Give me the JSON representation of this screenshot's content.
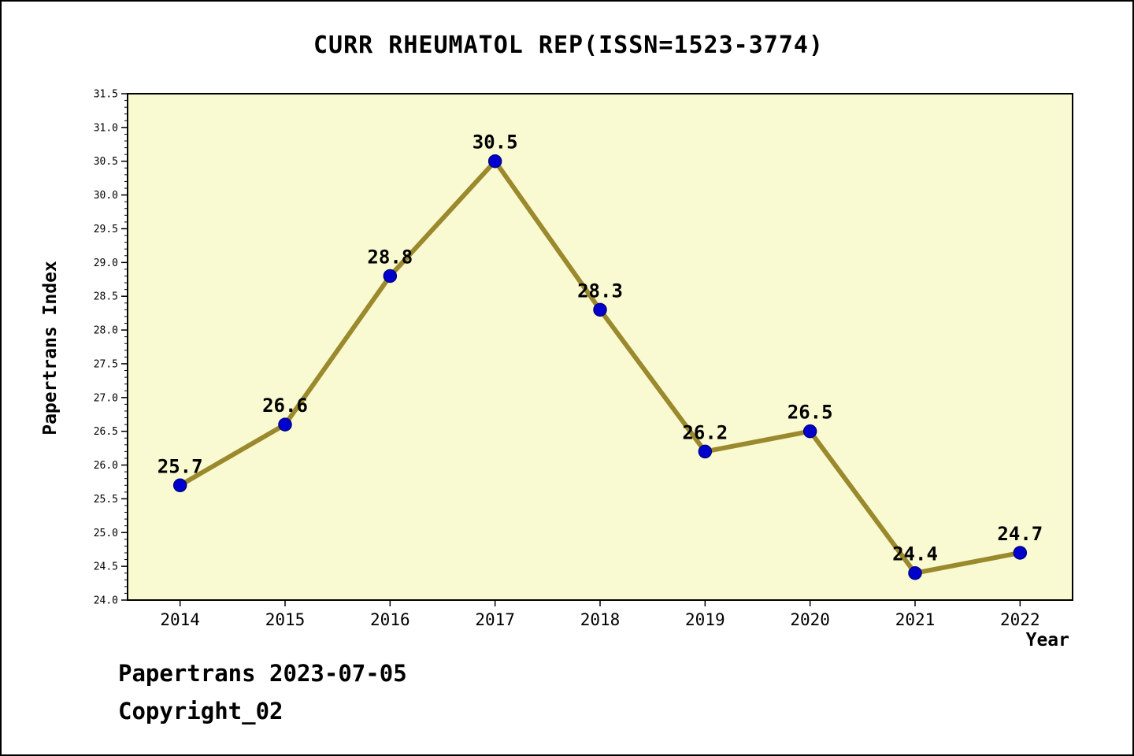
{
  "title": "CURR RHEUMATOL REP(ISSN=1523-3774)",
  "footer": {
    "line1": "Papertrans 2023-07-05",
    "line2": "Copyright_02"
  },
  "chart_data": {
    "type": "line",
    "title": "CURR RHEUMATOL REP(ISSN=1523-3774)",
    "xlabel": "Year",
    "ylabel": "Papertrans Index",
    "categories": [
      2014,
      2015,
      2016,
      2017,
      2018,
      2019,
      2020,
      2021,
      2022
    ],
    "values": [
      25.7,
      26.6,
      28.8,
      30.5,
      28.3,
      26.2,
      26.5,
      24.4,
      24.7
    ],
    "ylim": [
      24.0,
      31.5
    ],
    "ytick_step": 0.5,
    "ytick_minor_step": 0.1,
    "grid": false,
    "legend_position": "none",
    "colors": {
      "line": "#9A8A2D",
      "marker_fill": "#0000CC",
      "marker_edge": "#00008B",
      "plot_bg": "#FAFAD2",
      "axis": "#000000",
      "text": "#000000"
    }
  }
}
